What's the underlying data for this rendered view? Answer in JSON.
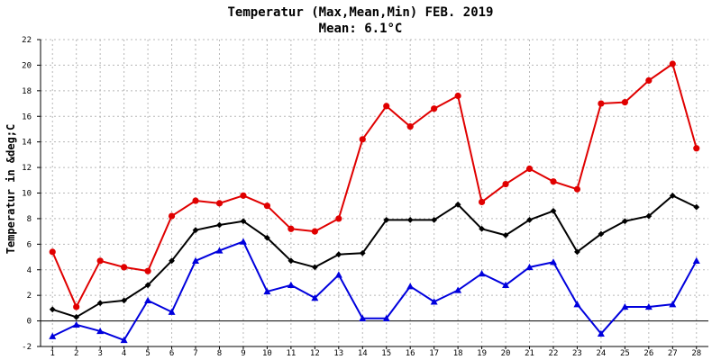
{
  "chart_data": {
    "type": "line",
    "title": "Temperatur (Max,Mean,Min) FEB. 2019",
    "subtitle": "Mean: 6.1°C",
    "xlabel": "",
    "ylabel": "Temperatur in &deg;C",
    "ylim": [
      -2,
      22
    ],
    "yticks": [
      -2,
      0,
      2,
      4,
      6,
      8,
      10,
      12,
      14,
      16,
      18,
      20,
      22
    ],
    "x": [
      1,
      2,
      3,
      4,
      5,
      6,
      7,
      8,
      9,
      10,
      11,
      12,
      13,
      14,
      15,
      16,
      17,
      18,
      19,
      20,
      21,
      22,
      23,
      24,
      25,
      26,
      27,
      28
    ],
    "grid": true,
    "series": [
      {
        "color": "#e00000",
        "marker": "circle",
        "values": [
          5.4,
          1.1,
          4.7,
          4.2,
          3.9,
          8.2,
          9.4,
          9.2,
          9.8,
          9.0,
          7.2,
          7.0,
          8.0,
          14.2,
          16.8,
          15.2,
          16.6,
          17.6,
          9.3,
          10.7,
          11.9,
          10.9,
          10.3,
          17.0,
          17.1,
          18.8,
          20.1,
          13.5
        ]
      },
      {
        "color": "#000000",
        "marker": "diamond",
        "values": [
          0.9,
          0.3,
          1.4,
          1.6,
          2.8,
          4.7,
          7.1,
          7.5,
          7.8,
          6.5,
          4.7,
          4.2,
          5.2,
          5.3,
          7.9,
          7.9,
          7.9,
          9.1,
          7.2,
          6.7,
          7.9,
          8.6,
          5.4,
          6.8,
          7.8,
          8.2,
          9.8,
          8.9
        ]
      },
      {
        "color": "#0000dd",
        "marker": "triangle",
        "values": [
          -1.2,
          -0.3,
          -0.8,
          -1.5,
          1.6,
          0.7,
          4.7,
          5.5,
          6.2,
          2.3,
          2.8,
          1.8,
          3.6,
          0.2,
          0.2,
          2.7,
          1.5,
          2.4,
          3.7,
          2.8,
          4.2,
          4.6,
          1.3,
          -1.0,
          1.1,
          1.1,
          1.3,
          4.7
        ]
      }
    ]
  }
}
